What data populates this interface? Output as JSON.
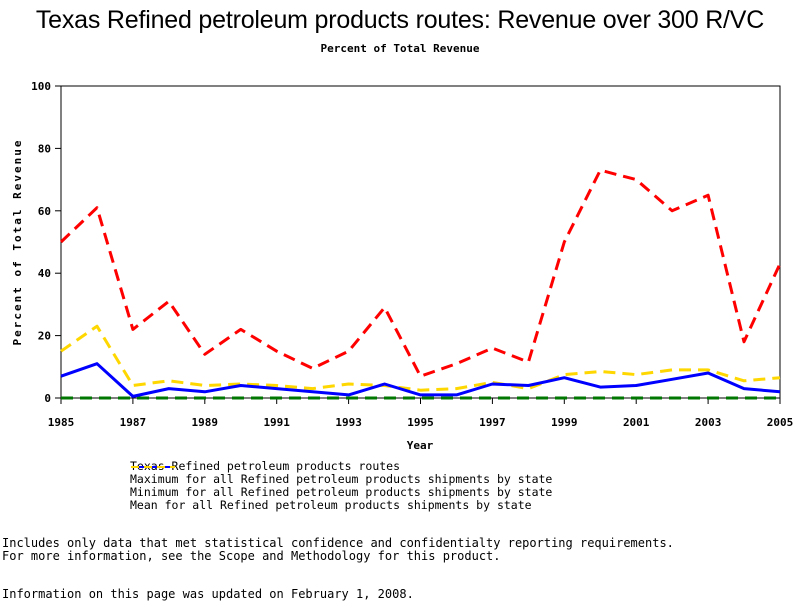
{
  "chart_data": {
    "type": "line",
    "title": "Texas Refined petroleum products routes: Revenue over 300 R/VC",
    "subtitle": "Percent of Total Revenue",
    "xlabel": "Year",
    "ylabel": "Percent of Total Revenue",
    "xlim": [
      1985,
      2005
    ],
    "ylim": [
      0,
      100
    ],
    "x_ticks": [
      "1985",
      "1987",
      "1989",
      "1991",
      "1993",
      "1995",
      "1997",
      "1999",
      "2001",
      "2003",
      "2005"
    ],
    "y_ticks": [
      "0",
      "20",
      "40",
      "60",
      "80",
      "100"
    ],
    "grid": false,
    "x": [
      1985,
      1986,
      1987,
      1988,
      1989,
      1990,
      1991,
      1992,
      1993,
      1994,
      1995,
      1996,
      1997,
      1998,
      1999,
      2000,
      2001,
      2002,
      2003,
      2004,
      2005
    ],
    "series": [
      {
        "name": "Texas Refined petroleum products routes",
        "color": "#0000ff",
        "style": "solid",
        "values": [
          7,
          11,
          0.5,
          3,
          2,
          4,
          3,
          2,
          1,
          4.5,
          1,
          1,
          4.5,
          4,
          6.5,
          3.5,
          4,
          6,
          8,
          3,
          2
        ]
      },
      {
        "name": "Maximum for all Refined petroleum products shipments by state",
        "color": "#ff0000",
        "style": "dashed",
        "values": [
          50,
          61,
          22,
          31,
          14,
          22,
          15,
          9.5,
          15,
          29,
          7,
          11,
          16,
          11.5,
          50,
          73,
          70,
          60,
          65,
          18,
          43
        ]
      },
      {
        "name": "Minimum for all Refined petroleum products shipments by state",
        "color": "#007700",
        "style": "dashed",
        "values": [
          0,
          0,
          0,
          0,
          0,
          0,
          0,
          0,
          0,
          0,
          0,
          0,
          0,
          0,
          0,
          0,
          0,
          0,
          0,
          0,
          0
        ]
      },
      {
        "name": "Mean for all Refined petroleum products shipments by state",
        "color": "#ffd700",
        "style": "dashed",
        "values": [
          15,
          23,
          4,
          5.5,
          4,
          4.5,
          4,
          3,
          4.5,
          4,
          2.5,
          3,
          5,
          3,
          7.5,
          8.5,
          7.5,
          9,
          9,
          5.5,
          6.5
        ]
      }
    ],
    "legend_position": "bottom"
  },
  "footer": {
    "note_line1": "Includes only data that met statistical confidence and confidentialty reporting requirements.",
    "note_line2": "For more information, see the Scope and Methodology for this product.",
    "updated": "Information on this page was updated on February 1, 2008."
  }
}
